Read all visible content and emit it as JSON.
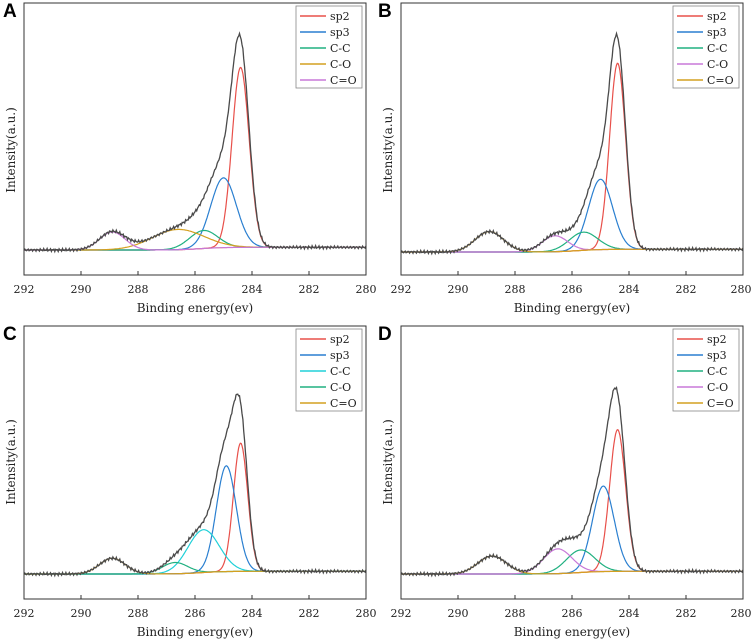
{
  "figure": {
    "xlabel": "Binding energy(ev)",
    "ylabel": "Intensity(a.u.)",
    "xticks": [
      "292",
      "290",
      "288",
      "286",
      "284",
      "282",
      "280"
    ]
  },
  "colors": {
    "envelope": "#4a4a4a",
    "baseline": "#e0a030"
  },
  "chart_data": [
    {
      "type": "line",
      "panel": "A",
      "xlabel": "Binding energy(ev)",
      "ylabel": "Intensity(a.u.)",
      "xlim": [
        292,
        280
      ],
      "x_reversed": true,
      "ylim": [
        0,
        1
      ],
      "legend_position": "top-right",
      "series": [
        {
          "name": "sp2",
          "color": "#e8504a",
          "center": 284.4,
          "height": 0.8,
          "width": 0.3
        },
        {
          "name": "sp3",
          "color": "#2a7fd0",
          "center": 285.0,
          "height": 0.31,
          "width": 0.45
        },
        {
          "name": "C-C",
          "color": "#20b080",
          "center": 285.7,
          "height": 0.08,
          "width": 0.5
        },
        {
          "name": "C-O",
          "color": "#d4a020",
          "center": 286.6,
          "height": 0.09,
          "width": 0.9
        },
        {
          "name": "C=O",
          "color": "#c878d8",
          "center": 288.9,
          "height": 0.08,
          "width": 0.45
        }
      ]
    },
    {
      "type": "line",
      "panel": "B",
      "xlabel": "Binding energy(ev)",
      "ylabel": "Intensity(a.u.)",
      "xlim": [
        292,
        280
      ],
      "x_reversed": true,
      "ylim": [
        0,
        1
      ],
      "legend_position": "top-right",
      "series": [
        {
          "name": "sp2",
          "color": "#e8504a",
          "center": 284.4,
          "height": 0.82,
          "width": 0.28
        },
        {
          "name": "sp3",
          "color": "#2a7fd0",
          "center": 285.0,
          "height": 0.31,
          "width": 0.42
        },
        {
          "name": "C-C",
          "color": "#20b080",
          "center": 285.6,
          "height": 0.08,
          "width": 0.5
        },
        {
          "name": "C-O",
          "color": "#c878d8",
          "center": 286.6,
          "height": 0.07,
          "width": 0.45
        },
        {
          "name": "C=O",
          "color": "#d4a020",
          "center": 288.9,
          "height": 0.09,
          "width": 0.5
        }
      ]
    },
    {
      "type": "line",
      "panel": "C",
      "xlabel": "Binding energy(ev)",
      "ylabel": "Intensity(a.u.)",
      "xlim": [
        292,
        280
      ],
      "x_reversed": true,
      "ylim": [
        0,
        1
      ],
      "legend_position": "top-right",
      "series": [
        {
          "name": "sp2",
          "color": "#e8504a",
          "center": 284.4,
          "height": 0.57,
          "width": 0.25
        },
        {
          "name": "sp3",
          "color": "#2a7fd0",
          "center": 284.9,
          "height": 0.47,
          "width": 0.35
        },
        {
          "name": "C-C",
          "color": "#20d0d8",
          "center": 285.7,
          "height": 0.19,
          "width": 0.55
        },
        {
          "name": "C-O",
          "color": "#20b080",
          "center": 286.7,
          "height": 0.05,
          "width": 0.45
        },
        {
          "name": "C=O",
          "color": "#d4a020",
          "center": 288.9,
          "height": 0.07,
          "width": 0.45
        }
      ]
    },
    {
      "type": "line",
      "panel": "D",
      "xlabel": "Binding energy(ev)",
      "ylabel": "Intensity(a.u.)",
      "xlim": [
        292,
        280
      ],
      "x_reversed": true,
      "ylim": [
        0,
        1
      ],
      "legend_position": "top-right",
      "series": [
        {
          "name": "sp2",
          "color": "#e8504a",
          "center": 284.4,
          "height": 0.63,
          "width": 0.28
        },
        {
          "name": "sp3",
          "color": "#2a7fd0",
          "center": 284.9,
          "height": 0.38,
          "width": 0.38
        },
        {
          "name": "C-C",
          "color": "#20b080",
          "center": 285.7,
          "height": 0.1,
          "width": 0.5
        },
        {
          "name": "C-O",
          "color": "#c878d8",
          "center": 286.5,
          "height": 0.11,
          "width": 0.5
        },
        {
          "name": "C=O",
          "color": "#d4a020",
          "center": 288.8,
          "height": 0.08,
          "width": 0.5
        }
      ]
    }
  ]
}
